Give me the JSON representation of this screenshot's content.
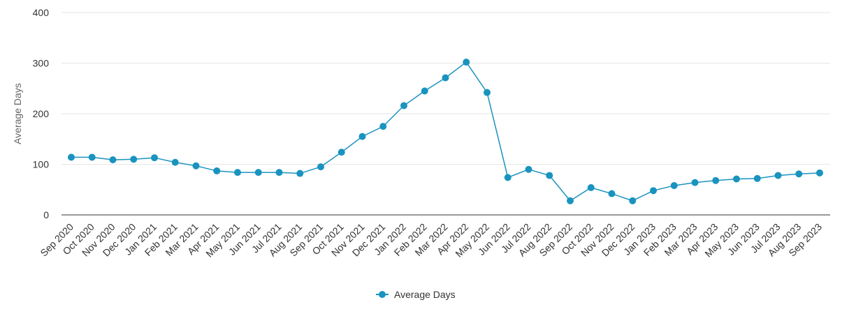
{
  "chart_data": {
    "type": "line",
    "title": "",
    "xlabel": "",
    "ylabel": "Average Days",
    "ylim": [
      0,
      400
    ],
    "yticks": [
      0,
      100,
      200,
      300,
      400
    ],
    "grid": true,
    "legend_position": "bottom-center",
    "colors": {
      "series": "#1a93bf",
      "grid": "#e6e6e6",
      "axis": "#333333"
    },
    "categories": [
      "Sep 2020",
      "Oct 2020",
      "Nov 2020",
      "Dec 2020",
      "Jan 2021",
      "Feb 2021",
      "Mar 2021",
      "Apr 2021",
      "May 2021",
      "Jun 2021",
      "Jul 2021",
      "Aug 2021",
      "Sep 2021",
      "Oct 2021",
      "Nov 2021",
      "Dec 2021",
      "Jan 2022",
      "Feb 2022",
      "Mar 2022",
      "Apr 2022",
      "May 2022",
      "Jun 2022",
      "Jul 2022",
      "Aug 2022",
      "Sep 2022",
      "Oct 2022",
      "Nov 2022",
      "Dec 2022",
      "Jan 2023",
      "Feb 2023",
      "Mar 2023",
      "Apr 2023",
      "May 2023",
      "Jun 2023",
      "Jul 2023",
      "Aug 2023",
      "Sep 2023"
    ],
    "series": [
      {
        "name": "Average Days",
        "values": [
          114,
          114,
          109,
          110,
          113,
          104,
          97,
          87,
          84,
          84,
          84,
          82,
          95,
          124,
          155,
          175,
          216,
          245,
          271,
          302,
          242,
          74,
          90,
          78,
          28,
          54,
          42,
          28,
          48,
          58,
          64,
          68,
          71,
          72,
          78,
          81,
          83
        ]
      }
    ]
  }
}
